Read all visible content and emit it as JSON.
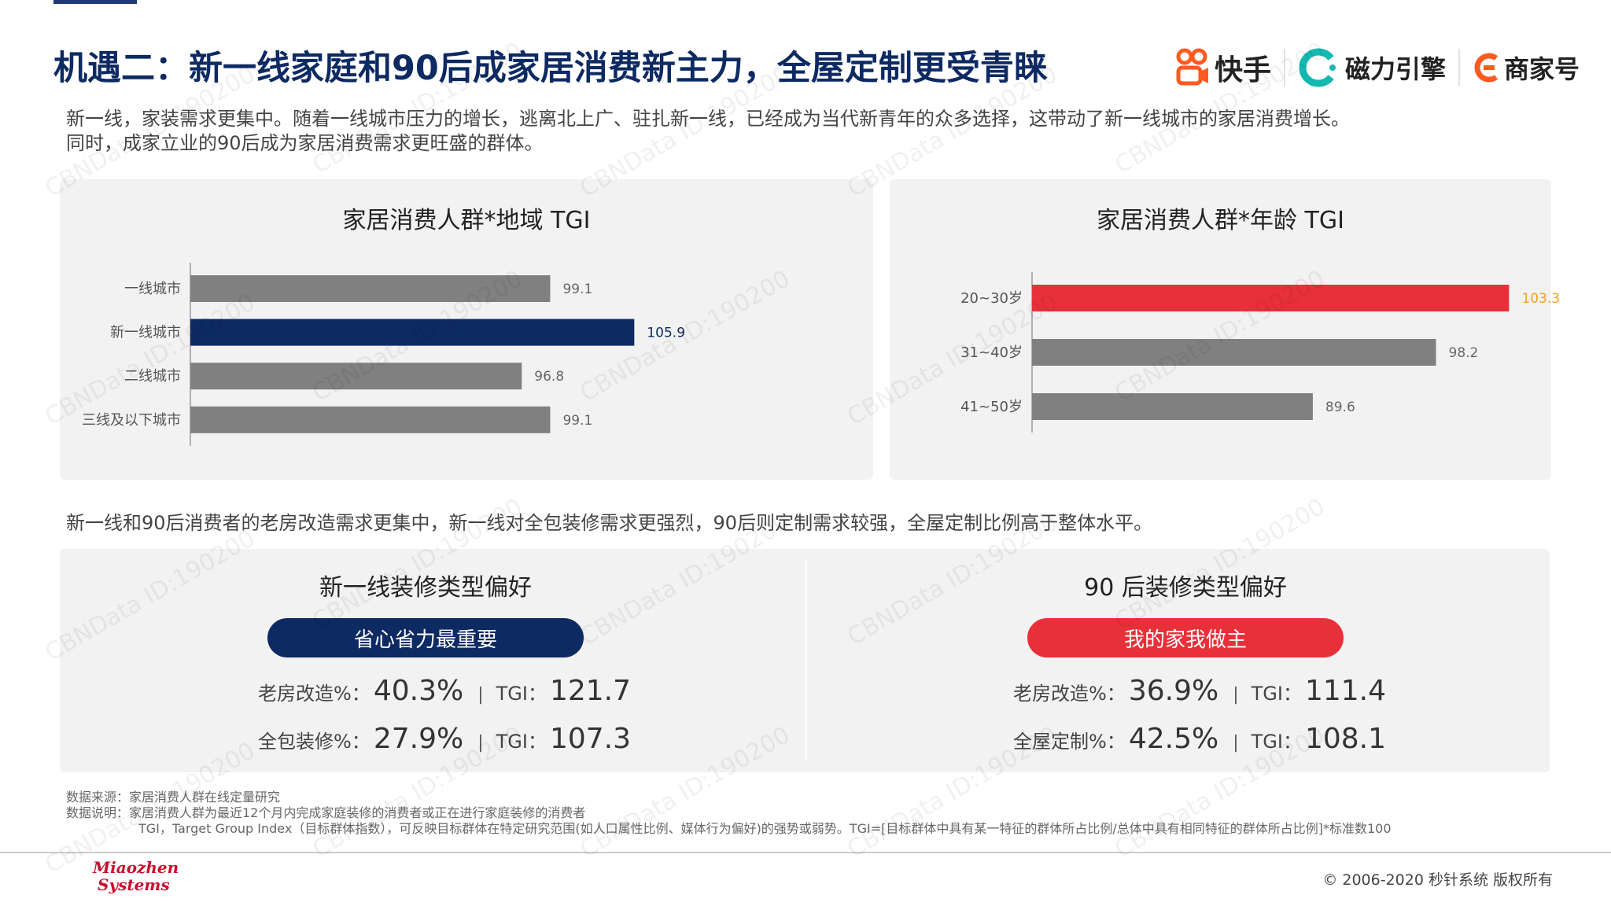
{
  "page": {
    "title": "机遇二：新一线家庭和90后成家居消费新主力，全屋定制更受青睐",
    "intro_line1": "新一线，家装需求更集中。随着一线城市压力的增长，逃离北上广、驻扎新一线，已经成为当代新青年的众多选择，这带动了新一线城市的家居消费增长。",
    "intro_line2": "同时，成家立业的90后成为家居消费需求更旺盛的群体。",
    "mid_text": "新一线和90后消费者的老房改造需求更集中，新一线对全包装修需求更强烈，90后则定制需求较强，全屋定制比例高于整体水平。"
  },
  "logos": {
    "kuaishou": "快手",
    "cili": "磁力引擎",
    "shangjia": "商家号"
  },
  "chart_data": [
    {
      "type": "bar",
      "orientation": "horizontal",
      "title": "家居消费人群*地域 TGI",
      "categories": [
        "一线城市",
        "新一线城市",
        "二线城市",
        "三线及以下城市"
      ],
      "values": [
        99.1,
        105.9,
        96.8,
        99.1
      ],
      "highlight_index": 1,
      "colors": {
        "default": "#808080",
        "highlight": "#0e2a63",
        "highlight_label": "#0e2a63"
      }
    },
    {
      "type": "bar",
      "orientation": "horizontal",
      "title": "家居消费人群*年龄 TGI",
      "categories": [
        "20~30岁",
        "31~40岁",
        "41~50岁"
      ],
      "values": [
        103.3,
        98.2,
        89.6
      ],
      "highlight_index": 0,
      "colors": {
        "default": "#808080",
        "highlight": "#e8303a",
        "highlight_label": "#f0a020"
      }
    }
  ],
  "preferences": {
    "left": {
      "title": "新一线装修类型偏好",
      "pill": "省心省力最重要",
      "pill_color": "#0e2a63",
      "row1": {
        "label": "老房改造%：",
        "value": "40.3%",
        "sep": "|",
        "tgi_label": "TGI：",
        "tgi": "121.7"
      },
      "row2": {
        "label": "全包装修%：",
        "value": "27.9%",
        "sep": "|",
        "tgi_label": "TGI：",
        "tgi": "107.3"
      }
    },
    "right": {
      "title": "90 后装修类型偏好",
      "pill": "我的家我做主",
      "pill_color": "#e8303a",
      "row1": {
        "label": "老房改造%：",
        "value": "36.9%",
        "sep": "|",
        "tgi_label": "TGI：",
        "tgi": "111.4"
      },
      "row2": {
        "label": "全屋定制%：",
        "value": "42.5%",
        "sep": "|",
        "tgi_label": "TGI：",
        "tgi": "108.1"
      }
    }
  },
  "notes": {
    "source": "数据来源：家居消费人群在线定量研究",
    "desc": "数据说明：家居消费人群为最近12个月内完成家庭装修的消费者或正在进行家庭装修的消费者",
    "tgi": "TGI，Target Group Index（目标群体指数），可反映目标群体在特定研究范围(如人口属性比例、媒体行为偏好)的强势或弱势。TGI=[目标群体中具有某一特征的群体所占比例/总体中具有相同特征的群体所占比例]*标准数100"
  },
  "footer": {
    "logo_line1": "Miaozhen",
    "logo_line2": "Systems",
    "copyright": "© 2006-2020 秒针系统 版权所有"
  },
  "watermark": "CBNData ID:190200"
}
